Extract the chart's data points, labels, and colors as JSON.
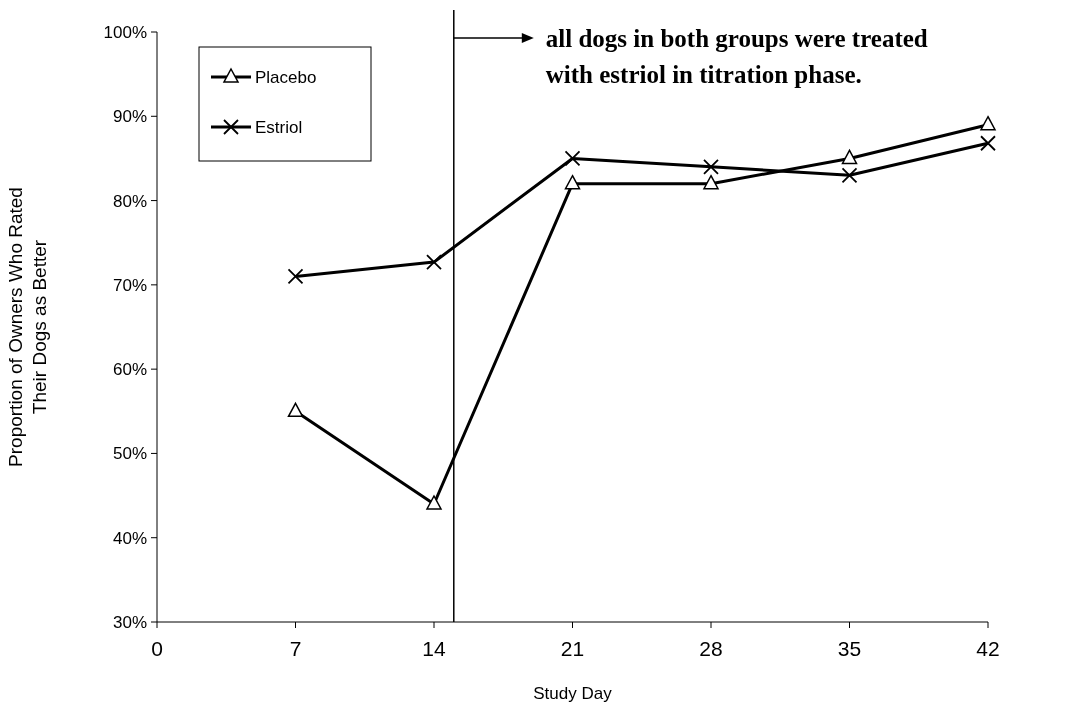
{
  "chart_data": {
    "type": "line",
    "xlabel": "Study Day",
    "ylabel": "Proportion of Owners Who Rated\nTheir Dogs as Better",
    "x": [
      7,
      14,
      21,
      28,
      35,
      42
    ],
    "series": [
      {
        "name": "Placebo",
        "color": "#000000",
        "marker": "triangle",
        "values": [
          55,
          44,
          82,
          82,
          85,
          89
        ]
      },
      {
        "name": "Estriol",
        "color": "#000000",
        "marker": "cross",
        "values": [
          71,
          72.7,
          85,
          84,
          83,
          86.8
        ]
      }
    ],
    "xlim": [
      0,
      42
    ],
    "xticks": [
      0,
      7,
      14,
      21,
      28,
      35,
      42
    ],
    "ylim": [
      30,
      100
    ],
    "yticks": [
      {
        "value": 30,
        "label": "30%"
      },
      {
        "value": 40,
        "label": "40%"
      },
      {
        "value": 50,
        "label": "50%"
      },
      {
        "value": 60,
        "label": "60%"
      },
      {
        "value": 70,
        "label": "70%"
      },
      {
        "value": 80,
        "label": "80%"
      },
      {
        "value": 90,
        "label": "90%"
      },
      {
        "value": 100,
        "label": "100%"
      }
    ],
    "ref_lines": [
      {
        "axis": "x",
        "value": 15,
        "color": "#000000",
        "label": "all dogs in both groups were treated\nwith estriol in titration phase."
      }
    ],
    "legend": "top left",
    "grid": false,
    "line_style": "solid"
  }
}
